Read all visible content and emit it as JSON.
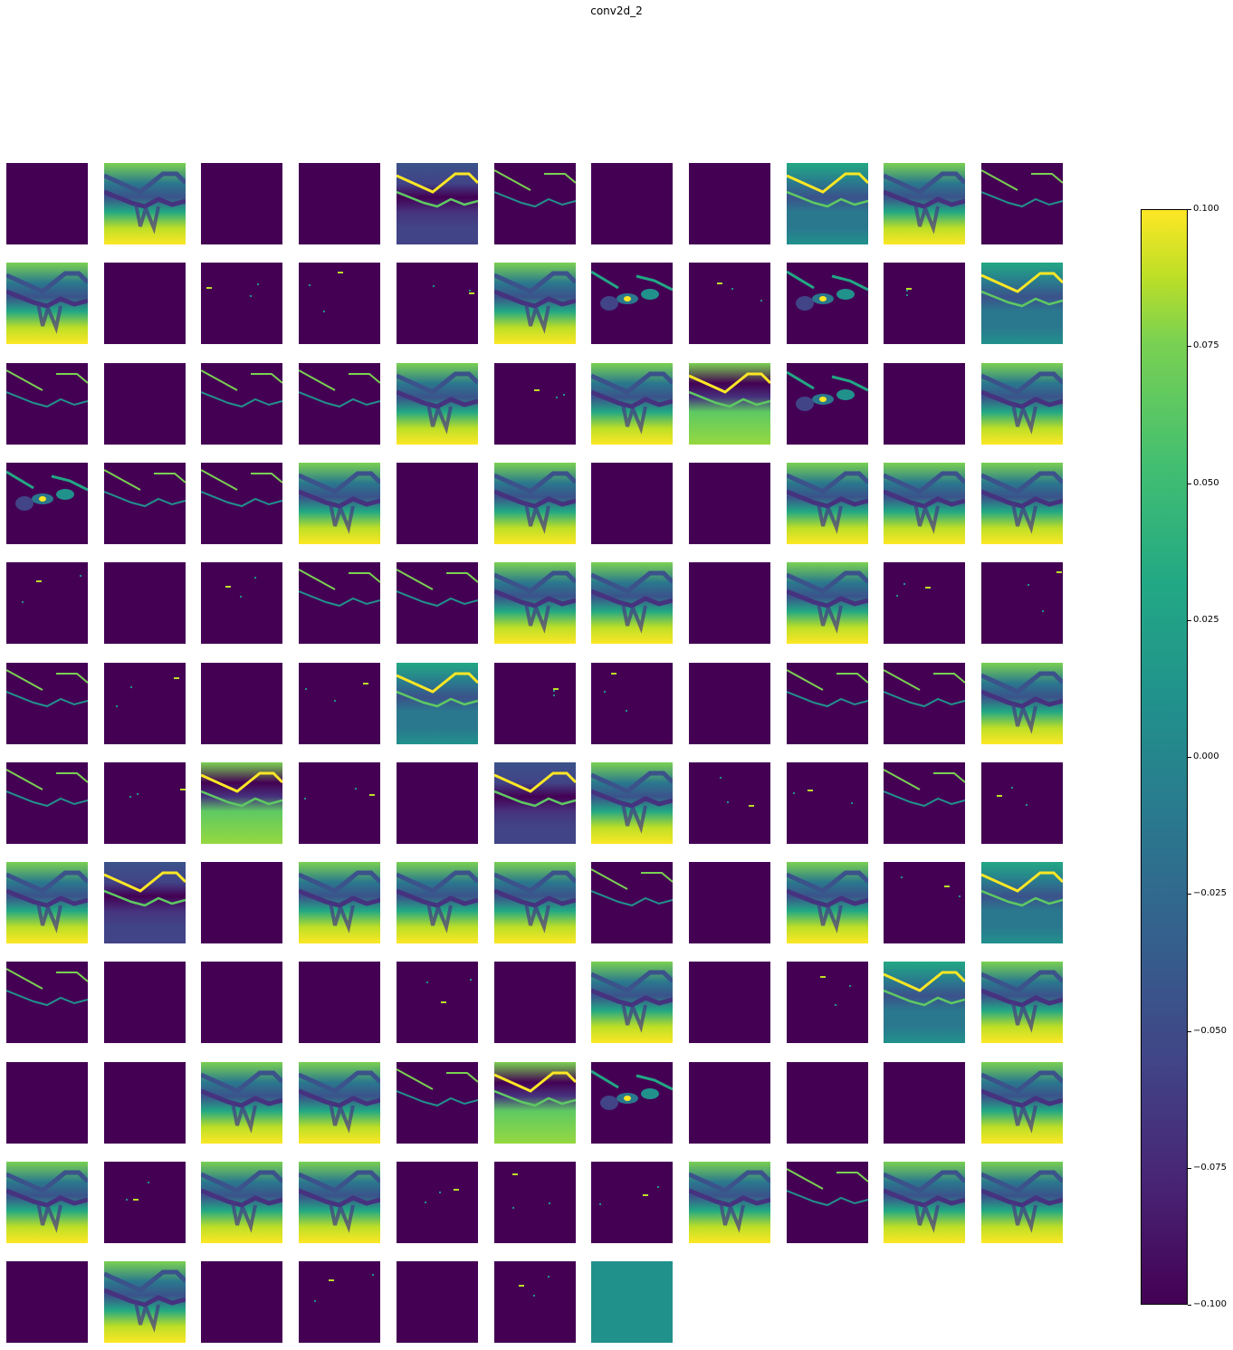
{
  "figure": {
    "title": "conv2d_2"
  },
  "chart_data": {
    "type": "heatmap",
    "title": "conv2d_2",
    "description": "Grid of 128 feature-map activations (viridis colormap) from layer conv2d_2, 11 columns x 12 rows (last row has 7).",
    "grid": {
      "columns": 11,
      "rows": 12,
      "count": 128
    },
    "colormap": "viridis",
    "colorbar": {
      "vmin": -0.1,
      "vmax": 0.1,
      "ticks": [
        "0.100",
        "0.075",
        "0.050",
        "0.025",
        "0.000",
        "−0.025",
        "−0.050",
        "−0.075",
        "−0.100"
      ],
      "tick_values": [
        0.1,
        0.075,
        0.05,
        0.025,
        0.0,
        -0.025,
        -0.05,
        -0.075,
        -0.1
      ]
    },
    "tile_type_legend": {
      "E": "empty (uniform minimum, dark purple)",
      "Y": "retina structure, high activation (yellow)",
      "L": "thin retinal layer lines on dark background",
      "S": "sparse specks",
      "T": "retina structure on teal background",
      "M": "retina structure on blue-purple background",
      "N": "noisy green texture",
      "B": "blob-like bright regions",
      "C": "uniform constant teal"
    },
    "tiles": [
      "E",
      "Y",
      "E",
      "E",
      "M",
      "L",
      "E",
      "E",
      "T",
      "Y",
      "L",
      "Y",
      "E",
      "S",
      "S",
      "S",
      "Y",
      "B",
      "S",
      "B",
      "S",
      "T",
      "L",
      "E",
      "L",
      "L",
      "Y",
      "S",
      "Y",
      "N",
      "B",
      "E",
      "Y",
      "B",
      "L",
      "L",
      "Y",
      "E",
      "Y",
      "E",
      "E",
      "Y",
      "Y",
      "Y",
      "S",
      "E",
      "S",
      "L",
      "L",
      "Y",
      "Y",
      "E",
      "Y",
      "S",
      "S",
      "L",
      "S",
      "E",
      "S",
      "T",
      "S",
      "S",
      "E",
      "L",
      "L",
      "Y",
      "L",
      "S",
      "N",
      "S",
      "E",
      "M",
      "Y",
      "S",
      "S",
      "L",
      "S",
      "Y",
      "M",
      "E",
      "Y",
      "Y",
      "Y",
      "L",
      "E",
      "Y",
      "S",
      "T",
      "L",
      "E",
      "E",
      "E",
      "S",
      "E",
      "Y",
      "E",
      "S",
      "T",
      "Y",
      "E",
      "E",
      "Y",
      "Y",
      "L",
      "N",
      "B",
      "E",
      "E",
      "E",
      "Y",
      "Y",
      "S",
      "Y",
      "Y",
      "S",
      "S",
      "S",
      "Y",
      "L",
      "Y",
      "Y",
      "E",
      "Y",
      "E",
      "S",
      "E",
      "S",
      "C"
    ]
  },
  "colors": {
    "min": "#440154",
    "mid": "#21918c",
    "max": "#fde725"
  }
}
